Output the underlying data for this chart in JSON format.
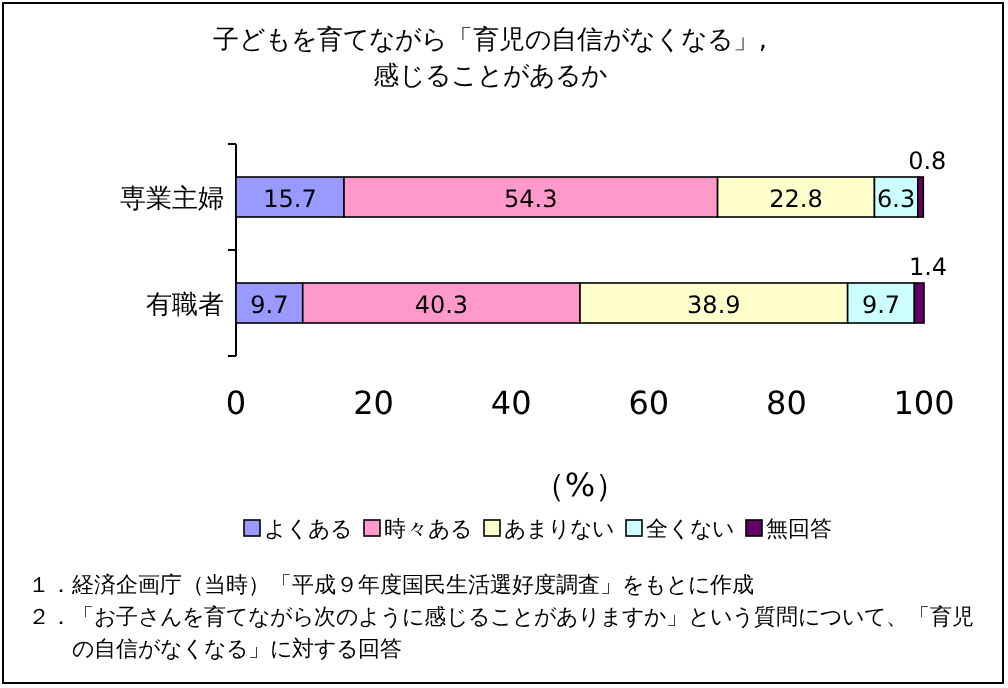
{
  "chart_data": {
    "type": "bar",
    "orientation": "horizontal",
    "stacked": true,
    "title": "子どもを育てながら「育児の自信がなくなる」,\n感じることがあるか",
    "xlabel": "（%）",
    "categories": [
      "専業主婦",
      "有職者"
    ],
    "series": [
      {
        "name": "よくある",
        "color": "#9999ff",
        "values": [
          15.7,
          9.7
        ]
      },
      {
        "name": "時々ある",
        "color": "#ff99cc",
        "values": [
          54.3,
          40.3
        ]
      },
      {
        "name": "あまりない",
        "color": "#ffffcc",
        "values": [
          22.8,
          38.9
        ]
      },
      {
        "name": "全くない",
        "color": "#ccffff",
        "values": [
          6.3,
          9.7
        ]
      },
      {
        "name": "無回答",
        "color": "#660066",
        "values": [
          0.8,
          1.4
        ]
      }
    ],
    "xlim": [
      0,
      100
    ],
    "xticks": [
      0,
      20,
      40,
      60,
      80,
      100
    ],
    "data_labels": true,
    "legend": "bottom",
    "grid": false,
    "annotations": [
      "１．経済企画庁（当時）「平成９年度国民生活選好度調査」をもとに作成",
      "２．「お子さんを育てながら次のように感じることがありますか」という質問について、「育児の自信がなくなる」に対する回答"
    ]
  }
}
